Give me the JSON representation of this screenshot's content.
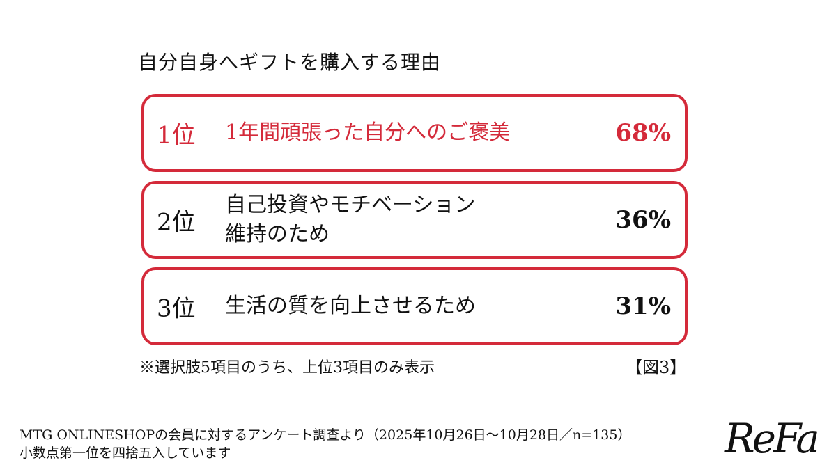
{
  "title": "自分自身へギフトを購入する理由",
  "accent_color": "#d42a3a",
  "chart_data": {
    "type": "table",
    "title": "自分自身へギフトを購入する理由",
    "rows": [
      {
        "rank": "1位",
        "label": "1年間頑張った自分へのご褒美",
        "value": 68,
        "value_label": "68%",
        "highlight": true
      },
      {
        "rank": "2位",
        "label": "自己投資やモチベーション\n維持のため",
        "value": 36,
        "value_label": "36%",
        "highlight": false
      },
      {
        "rank": "3位",
        "label": "生活の質を向上させるため",
        "value": 31,
        "value_label": "31%",
        "highlight": false
      }
    ]
  },
  "note": "※選択肢5項目のうち、上位3項目のみ表示",
  "figure_label": "【図3】",
  "source_line1": "MTG ONLINESHOPの会員に対するアンケート調査より（2025年10月26日〜10月28日／n=135）",
  "source_line2": "小数点第一位を四捨五入しています",
  "logo": "ReFa"
}
